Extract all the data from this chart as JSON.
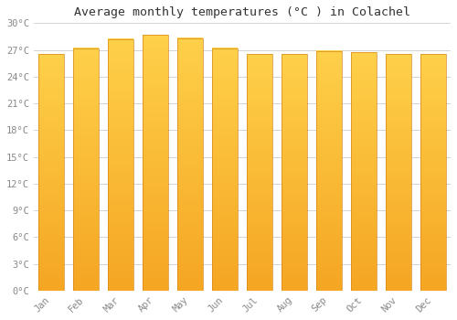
{
  "months": [
    "Jan",
    "Feb",
    "Mar",
    "Apr",
    "May",
    "Jun",
    "Jul",
    "Aug",
    "Sep",
    "Oct",
    "Nov",
    "Dec"
  ],
  "temperatures": [
    26.5,
    27.2,
    28.2,
    28.7,
    28.3,
    27.2,
    26.5,
    26.5,
    26.9,
    26.7,
    26.5,
    26.5
  ],
  "bar_color_bottom": "#F5A623",
  "bar_color_top": "#FFD04A",
  "bar_edge_color": "#D4891A",
  "title": "Average monthly temperatures (°C ) in Colachel",
  "ylim": [
    0,
    30
  ],
  "ytick_step": 3,
  "background_color": "#FFFFFF",
  "grid_color": "#CCCCCC",
  "title_fontsize": 9.5,
  "tick_fontsize": 7.5,
  "tick_color": "#888888",
  "bar_width": 0.72,
  "figsize": [
    5.0,
    3.5
  ],
  "dpi": 100
}
